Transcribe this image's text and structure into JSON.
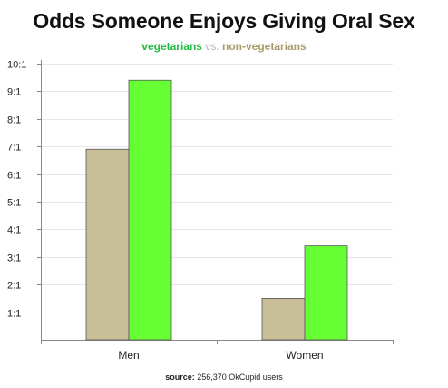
{
  "chart_data": {
    "type": "bar",
    "title": "Odds Someone Enjoys Giving Oral Sex",
    "subtitle": {
      "first": "vegetarians",
      "separator": "vs.",
      "second": "non-vegetarians"
    },
    "categories": [
      "Men",
      "Women"
    ],
    "series": [
      {
        "name": "non-vegetarians",
        "color": "#c8bf98",
        "values": [
          6.9,
          1.5
        ]
      },
      {
        "name": "vegetarians",
        "color": "#66ff33",
        "values": [
          9.4,
          3.4
        ]
      }
    ],
    "yticks": [
      "1:1",
      "2:1",
      "3:1",
      "4:1",
      "5:1",
      "6:1",
      "7:1",
      "8:1",
      "9:1",
      "10:1"
    ],
    "ylim": [
      0,
      10
    ],
    "grid": true,
    "colors": {
      "veg_text": "#22bb44",
      "nonveg_text": "#a89a6a",
      "edge": "#555555"
    }
  },
  "source": {
    "label": "source:",
    "text": "256,370 OkCupid users"
  }
}
